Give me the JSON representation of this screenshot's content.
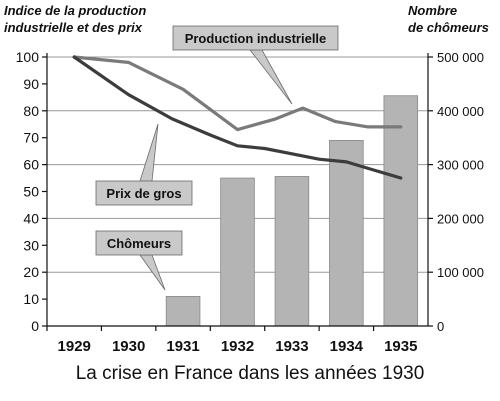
{
  "chart_data": {
    "type": "bar",
    "left_axis_title_line1": "Indice de la production",
    "left_axis_title_line2": "industrielle et des prix",
    "right_axis_title_line1": "Nombre",
    "right_axis_title_line2": "de chômeurs",
    "categories": [
      "1929",
      "1930",
      "1931",
      "1932",
      "1933",
      "1934",
      "1935"
    ],
    "left_axis": {
      "min": 0,
      "max": 100,
      "ticks": [
        "0",
        "10",
        "20",
        "30",
        "40",
        "50",
        "60",
        "70",
        "80",
        "90",
        "100"
      ]
    },
    "right_axis": {
      "min": 0,
      "max": 500000,
      "ticks": [
        "0",
        "100 000",
        "200 000",
        "300 000",
        "400 000",
        "500 000"
      ]
    },
    "bars": {
      "name": "Chômeurs",
      "axis": "right",
      "values": [
        0,
        0,
        55000,
        275000,
        278000,
        345000,
        428000
      ],
      "color": "#b4b4b4"
    },
    "series": [
      {
        "name": "Production industrielle",
        "axis": "left",
        "x": [
          1929,
          1930,
          1931,
          1932,
          1932.7,
          1933.2,
          1933.8,
          1934.4,
          1935
        ],
        "values": [
          100,
          98,
          88,
          73,
          77,
          81,
          76,
          74,
          74
        ],
        "color": "#7a7a7a"
      },
      {
        "name": "Prix de gros",
        "axis": "left",
        "x": [
          1929,
          1930,
          1930.8,
          1931.5,
          1932,
          1932.5,
          1933,
          1933.5,
          1934,
          1934.5,
          1935
        ],
        "values": [
          100,
          86,
          77,
          71,
          67,
          66,
          64,
          62,
          61,
          58,
          55
        ],
        "color": "#3c3c3c"
      }
    ],
    "callouts": [
      "Production industrielle",
      "Prix de gros",
      "Chômeurs"
    ],
    "grid": true
  },
  "caption": "La crise en France dans les années 1930"
}
